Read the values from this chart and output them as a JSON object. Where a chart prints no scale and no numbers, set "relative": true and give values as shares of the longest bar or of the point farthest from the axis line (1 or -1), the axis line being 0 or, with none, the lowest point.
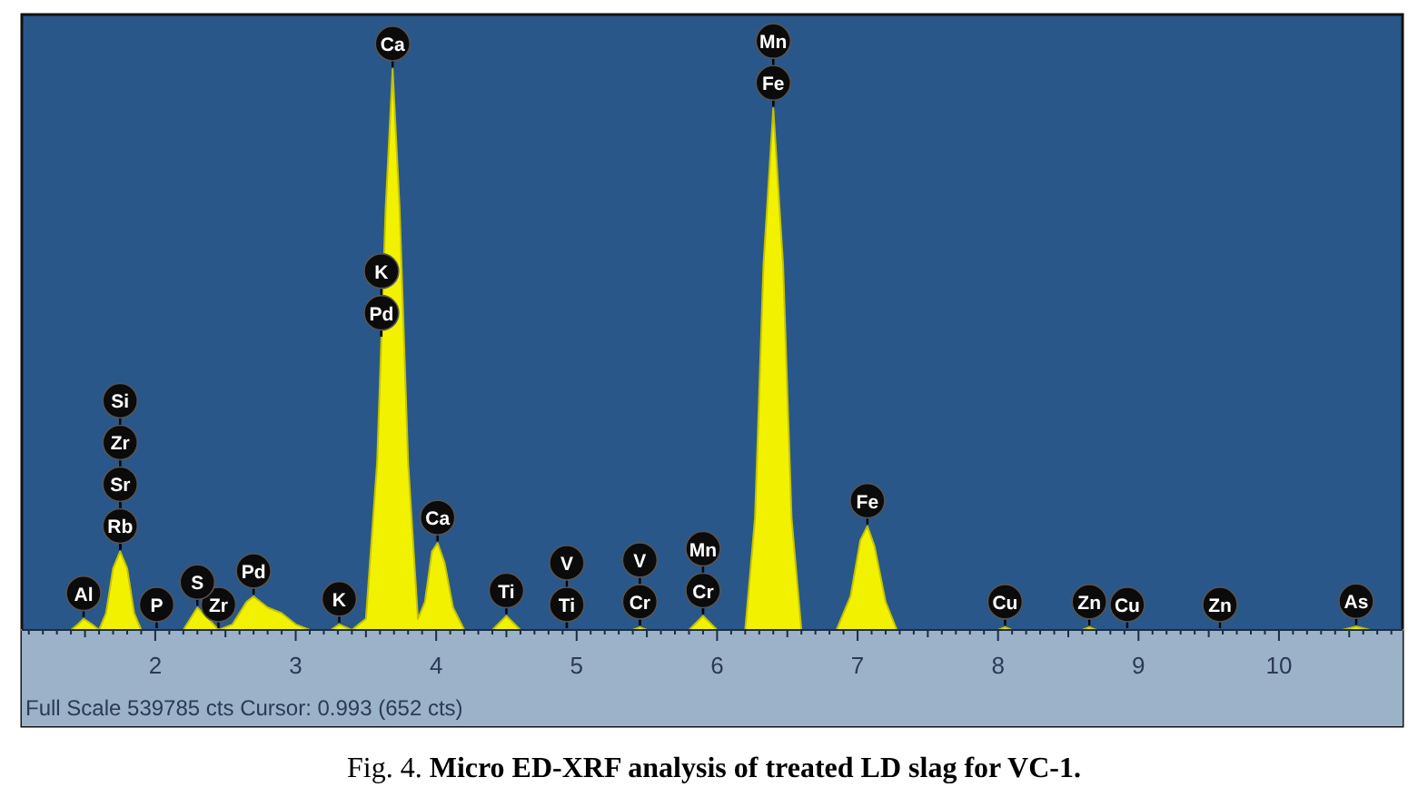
{
  "chart_data": {
    "type": "area",
    "title": "Fig. 4. Micro ED-XRF analysis of treated LD slag for VC-1.",
    "relative": true,
    "color": "#f2f200",
    "x": [
      1.05,
      1.4,
      1.45,
      1.49,
      1.55,
      1.6,
      1.65,
      1.7,
      1.75,
      1.8,
      1.85,
      1.9,
      2.01,
      2.2,
      2.3,
      2.38,
      2.45,
      2.55,
      2.65,
      2.7,
      2.8,
      2.9,
      3.0,
      3.1,
      3.25,
      3.31,
      3.4,
      3.5,
      3.58,
      3.61,
      3.64,
      3.69,
      3.74,
      3.8,
      3.87,
      3.92,
      3.97,
      4.01,
      4.06,
      4.12,
      4.2,
      4.4,
      4.5,
      4.6,
      4.93,
      5.4,
      5.45,
      5.5,
      5.8,
      5.9,
      6.0,
      6.2,
      6.27,
      6.33,
      6.4,
      6.47,
      6.53,
      6.6,
      6.85,
      6.95,
      7.02,
      7.07,
      7.12,
      7.2,
      7.28,
      8.0,
      8.05,
      8.1,
      8.6,
      8.65,
      8.7,
      8.92,
      9.58,
      10.45,
      10.55,
      10.65,
      10.88
    ],
    "values": [
      0,
      0,
      0.01,
      0.02,
      0.01,
      0,
      0.03,
      0.11,
      0.14,
      0.11,
      0.03,
      0,
      0,
      0,
      0.04,
      0.02,
      0,
      0.01,
      0.05,
      0.06,
      0.04,
      0.03,
      0.01,
      0,
      0,
      0.01,
      0,
      0.02,
      0.3,
      0.52,
      0.75,
      1,
      0.75,
      0.3,
      0.02,
      0.05,
      0.14,
      0.155,
      0.12,
      0.04,
      0,
      0,
      0.025,
      0,
      0,
      0,
      0.005,
      0,
      0,
      0.025,
      0,
      0,
      0.2,
      0.65,
      0.93,
      0.65,
      0.2,
      0,
      0,
      0.06,
      0.16,
      0.185,
      0.15,
      0.05,
      0,
      0,
      0.005,
      0,
      0,
      0.005,
      0,
      0,
      0,
      0,
      0.006,
      0,
      0
    ],
    "xlim": [
      1.05,
      10.88
    ],
    "xticks": [
      2,
      3,
      4,
      5,
      6,
      7,
      8,
      9,
      10
    ],
    "tick_labels": "x",
    "annotations": [
      {
        "text": "Al",
        "x": 1.49,
        "y": 0.02
      },
      {
        "text": "Rb",
        "x": 1.75,
        "y": 0.14
      },
      {
        "text": "Sr",
        "x": 1.75,
        "y": 0.14
      },
      {
        "text": "Zr",
        "x": 1.75,
        "y": 0.14
      },
      {
        "text": "Si",
        "x": 1.75,
        "y": 0.14
      },
      {
        "text": "P",
        "x": 2.01,
        "y": 0
      },
      {
        "text": "S",
        "x": 2.3,
        "y": 0.04
      },
      {
        "text": "Zr",
        "x": 2.45,
        "y": 0
      },
      {
        "text": "Pd",
        "x": 2.7,
        "y": 0.06
      },
      {
        "text": "K",
        "x": 3.31,
        "y": 0.01
      },
      {
        "text": "Pd",
        "x": 3.61,
        "y": 0.52
      },
      {
        "text": "K",
        "x": 3.61,
        "y": 0.52
      },
      {
        "text": "Ca",
        "x": 3.69,
        "y": 1
      },
      {
        "text": "Ca",
        "x": 4.01,
        "y": 0.155
      },
      {
        "text": "Ti",
        "x": 4.5,
        "y": 0.025
      },
      {
        "text": "Ti",
        "x": 4.93,
        "y": 0
      },
      {
        "text": "V",
        "x": 4.93,
        "y": 0
      },
      {
        "text": "Cr",
        "x": 5.45,
        "y": 0.005
      },
      {
        "text": "V",
        "x": 5.45,
        "y": 0.005
      },
      {
        "text": "Cr",
        "x": 5.9,
        "y": 0.025
      },
      {
        "text": "Mn",
        "x": 5.9,
        "y": 0.025
      },
      {
        "text": "Fe",
        "x": 6.4,
        "y": 0.93
      },
      {
        "text": "Mn",
        "x": 6.4,
        "y": 0.93
      },
      {
        "text": "Fe",
        "x": 7.07,
        "y": 0.185
      },
      {
        "text": "Cu",
        "x": 8.05,
        "y": 0.005
      },
      {
        "text": "Zn",
        "x": 8.65,
        "y": 0.005
      },
      {
        "text": "Cu",
        "x": 8.92,
        "y": 0
      },
      {
        "text": "Zn",
        "x": 9.58,
        "y": 0
      },
      {
        "text": "As",
        "x": 10.55,
        "y": 0.006
      },
      "Full Scale 539785 cts Cursor: 0.993  (652 cts)"
    ]
  }
}
